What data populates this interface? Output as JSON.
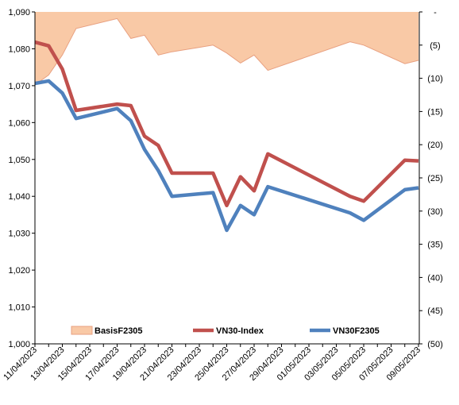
{
  "chart_data": {
    "type": "line",
    "title": "",
    "x_tick_labels": [
      "11/04/2023",
      "13/04/2023",
      "15/04/2023",
      "17/04/2023",
      "19/04/2023",
      "21/04/2023",
      "23/04/2023",
      "25/04/2023",
      "27/04/2023",
      "29/04/2023",
      "01/05/2023",
      "03/05/2023",
      "05/05/2023",
      "07/05/2023",
      "09/05/2023"
    ],
    "y_left": {
      "min": 1000,
      "max": 1090,
      "ticks": [
        1000,
        1010,
        1020,
        1030,
        1040,
        1050,
        1060,
        1070,
        1080,
        1090
      ],
      "tick_labels": [
        "1,000",
        "1,010",
        "1,020",
        "1,030",
        "1,040",
        "1,050",
        "1,060",
        "1,070",
        "1,080",
        "1,090"
      ]
    },
    "y_right": {
      "min": -50,
      "max": 0,
      "ticks": [
        0,
        -5,
        -10,
        -15,
        -20,
        -25,
        -30,
        -35,
        -40,
        -45,
        -50
      ],
      "tick_labels": [
        "-",
        "(5)",
        "(10)",
        "(15)",
        "(20)",
        "(25)",
        "(30)",
        "(35)",
        "(40)",
        "(45)",
        "(50)"
      ]
    },
    "x": [
      "2023-04-11",
      "2023-04-12",
      "2023-04-13",
      "2023-04-14",
      "2023-04-17",
      "2023-04-18",
      "2023-04-19",
      "2023-04-20",
      "2023-04-21",
      "2023-04-24",
      "2023-04-25",
      "2023-04-26",
      "2023-04-27",
      "2023-04-28",
      "2023-05-04",
      "2023-05-05",
      "2023-05-08",
      "2023-05-09"
    ],
    "series": [
      {
        "name": "BasisF2305",
        "type": "area",
        "axis": "right",
        "color": "#F9C9A6",
        "edge": "#E8A080",
        "values": [
          -11.0,
          -9.5,
          -6.5,
          -2.5,
          -1.0,
          -4.0,
          -3.5,
          -6.5,
          -6.0,
          -5.0,
          -6.2,
          -7.7,
          -6.5,
          -8.8,
          -4.5,
          -5.0,
          -7.8,
          -7.3
        ]
      },
      {
        "name": "VN30-Index",
        "type": "line",
        "axis": "left",
        "color": "#C0504D",
        "values": [
          1081.8,
          1080.8,
          1074.5,
          1063.3,
          1065.0,
          1064.6,
          1056.3,
          1053.8,
          1046.3,
          1046.3,
          1037.5,
          1045.3,
          1041.5,
          1051.5,
          1040.0,
          1038.7,
          1049.8,
          1049.6
        ]
      },
      {
        "name": "VN30F2305",
        "type": "line",
        "axis": "left",
        "color": "#4F81BD",
        "values": [
          1070.6,
          1071.3,
          1068.0,
          1061.1,
          1063.8,
          1060.5,
          1052.7,
          1047.0,
          1040.0,
          1041.0,
          1030.8,
          1037.5,
          1035.0,
          1042.6,
          1035.5,
          1033.5,
          1041.8,
          1042.3
        ]
      }
    ],
    "legend": {
      "position": "bottom",
      "labels": [
        "BasisF2305",
        "VN30-Index",
        "VN30F2305"
      ]
    },
    "grid": false
  }
}
